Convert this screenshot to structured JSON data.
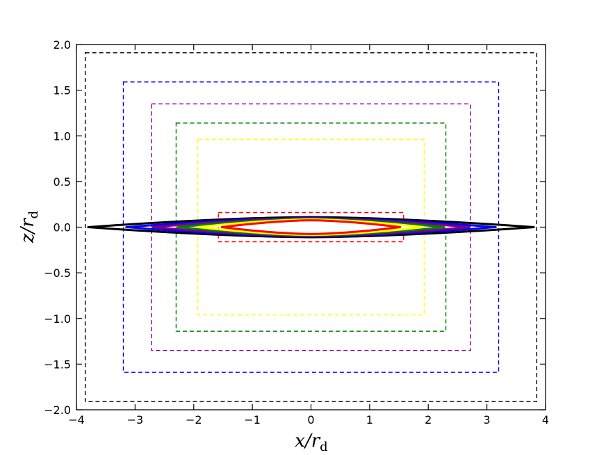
{
  "chart_data": {
    "type": "line",
    "title": "",
    "xlabel": "x/r_d",
    "ylabel": "z/r_d",
    "xlabel_parts": {
      "main": "x/r",
      "sub": "d"
    },
    "ylabel_parts": {
      "main": "z/r",
      "sub": "d"
    },
    "xlim": [
      -4,
      4
    ],
    "ylim": [
      -2,
      2
    ],
    "xticks": [
      -4,
      -3,
      -2,
      -1,
      0,
      1,
      2,
      3,
      4
    ],
    "xtick_labels": [
      "−4",
      "−3",
      "−2",
      "−1",
      "0",
      "1",
      "2",
      "3",
      "4"
    ],
    "yticks": [
      -2.0,
      -1.5,
      -1.0,
      -0.5,
      0.0,
      0.5,
      1.0,
      1.5,
      2.0
    ],
    "ytick_labels": [
      "−2.0",
      "−1.5",
      "−1.0",
      "−0.5",
      "0.0",
      "0.5",
      "1.0",
      "1.5",
      "2.0"
    ],
    "grid": false,
    "boxes": [
      {
        "color": "#000000",
        "x": [
          -3.85,
          3.85
        ],
        "z": [
          -1.91,
          1.91
        ]
      },
      {
        "color": "#0000ff",
        "x": [
          -3.2,
          3.2
        ],
        "z": [
          -1.59,
          1.59
        ]
      },
      {
        "color": "#800080",
        "x": [
          -2.72,
          2.72
        ],
        "z": [
          -1.35,
          1.35
        ]
      },
      {
        "color": "#008000",
        "x": [
          -2.3,
          2.3
        ],
        "z": [
          -1.14,
          1.14
        ]
      },
      {
        "color": "#ffff00",
        "x": [
          -1.93,
          1.93
        ],
        "z": [
          -0.96,
          0.96
        ]
      },
      {
        "color": "#ff0000",
        "x": [
          -1.58,
          1.58
        ],
        "z": [
          -0.16,
          0.16
        ]
      }
    ],
    "disks": [
      {
        "color": "#000000",
        "half_length": 3.8,
        "half_thickness": 0.11,
        "line_width": 3
      },
      {
        "color": "#0000ff",
        "half_length": 3.15,
        "half_thickness": 0.1,
        "line_width": 3
      },
      {
        "color": "#800080",
        "half_length": 2.7,
        "half_thickness": 0.095,
        "line_width": 3
      },
      {
        "color": "#008000",
        "half_length": 2.27,
        "half_thickness": 0.09,
        "line_width": 3
      },
      {
        "color": "#ffff00",
        "half_length": 1.92,
        "half_thickness": 0.085,
        "line_width": 3
      },
      {
        "color": "#ff0000",
        "half_length": 1.52,
        "half_thickness": 0.075,
        "line_width": 3
      }
    ]
  }
}
